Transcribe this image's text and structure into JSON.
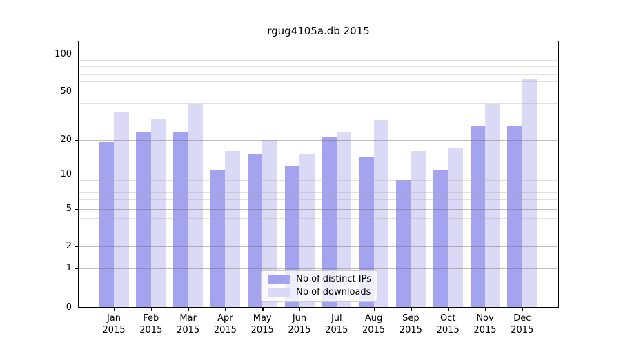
{
  "title": "rgug4105a.db 2015",
  "colors": {
    "distinct_ips": "#a3a3ef",
    "downloads": "#dadaf7",
    "axis": "#000000",
    "legend_border": "#cccccc"
  },
  "legend": {
    "items": [
      {
        "key": "distinct-ips",
        "label": "Nb of distinct IPs"
      },
      {
        "key": "downloads",
        "label": "Nb of downloads"
      }
    ]
  },
  "chart_data": {
    "type": "bar",
    "title": "rgug4105a.db 2015",
    "categories": [
      "Jan 2015",
      "Feb 2015",
      "Mar 2015",
      "Apr 2015",
      "May 2015",
      "Jun 2015",
      "Jul 2015",
      "Aug 2015",
      "Sep 2015",
      "Oct 2015",
      "Nov 2015",
      "Dec 2015"
    ],
    "series": [
      {
        "name": "Nb of distinct IPs",
        "key": "distinct-ips",
        "color": "#a3a3ef",
        "values": [
          19,
          23,
          23,
          11,
          15,
          12,
          21,
          14,
          9,
          11,
          26,
          26
        ]
      },
      {
        "name": "Nb of downloads",
        "key": "downloads",
        "color": "#dadaf7",
        "values": [
          34,
          30,
          39,
          16,
          20,
          15,
          23,
          29,
          16,
          17,
          39,
          63
        ]
      }
    ],
    "xlabel": "",
    "ylabel": "",
    "yscale": "symlog",
    "yticks": [
      0,
      1,
      2,
      5,
      10,
      20,
      50,
      100
    ],
    "minor_gridlines": [
      3,
      4,
      6,
      7,
      8,
      9,
      30,
      40,
      60,
      70,
      80,
      90
    ],
    "ylim": [
      0,
      130
    ],
    "grid": true,
    "legend_position": "lower center"
  }
}
